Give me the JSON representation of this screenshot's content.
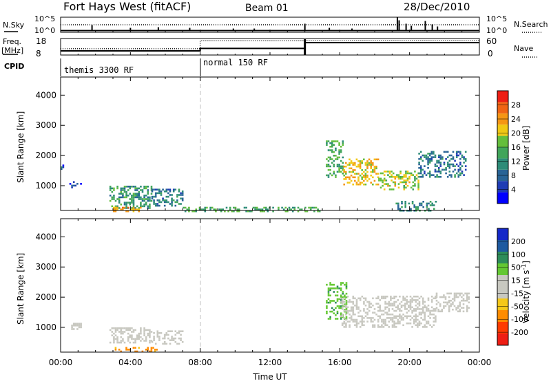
{
  "header": {
    "title": "Fort Hays West (fitACF)",
    "beam": "Beam 01",
    "date": "28/Dec/2010"
  },
  "top_panels": {
    "nsky_label": "N.Sky",
    "nsky_tick_hi": "10^5",
    "nsky_tick_lo": "10^0",
    "nsearch_label": "N.Search",
    "nsearch_tick_hi": "10^5",
    "nsearch_tick_lo": "10^0",
    "freq_label_1": "Freq.",
    "freq_label_2": "[MHz]",
    "freq_tick_hi": "18",
    "freq_tick_lo": "8",
    "nave_label": "Nave",
    "nave_tick_hi": "60",
    "nave_tick_lo": "0",
    "cpid_label": "CPID",
    "cpid_1": "themis 3300 RF",
    "cpid_2": "normal 150 RF"
  },
  "colors": {
    "power": [
      "#0000ff",
      "#1e3cb4",
      "#286496",
      "#2d8c78",
      "#41a55a",
      "#64be3c",
      "#f0c814",
      "#f59614",
      "#f06414",
      "#ee1e14"
    ],
    "velocity": [
      "#ee1e14",
      "#ff3c00",
      "#ff8c00",
      "#f5c819",
      "#c8c8c0",
      "#c8c8c0",
      "#64c832",
      "#2d8c5a",
      "#1e5aa0",
      "#1428c8"
    ],
    "gray_scatter": "#c8c8c0"
  },
  "chart_data": [
    {
      "type": "heatmap",
      "name": "power",
      "xlabel": "",
      "ylabel": "Slant Range [km]",
      "xlim": [
        0,
        24
      ],
      "ylim": [
        180,
        4600
      ],
      "yticks": [
        1000,
        2000,
        3000,
        4000
      ],
      "colorbar_label": "Power [dB]",
      "colorbar_ticks": [
        "4",
        "8",
        "12",
        "16",
        "20",
        "24",
        "28"
      ],
      "clim": [
        0,
        30
      ],
      "grid": false,
      "echo_regions": [
        {
          "t": [
            0.0,
            0.15
          ],
          "r": [
            1550,
            1700
          ],
          "value": 6
        },
        {
          "t": [
            0.5,
            1.2
          ],
          "r": [
            950,
            1150
          ],
          "value": 5
        },
        {
          "t": [
            2.8,
            5.2
          ],
          "r": [
            250,
            1000
          ],
          "value": 12
        },
        {
          "t": [
            5.2,
            7.0
          ],
          "r": [
            350,
            900
          ],
          "value": 9
        },
        {
          "t": [
            3.0,
            4.6
          ],
          "r": [
            180,
            300
          ],
          "value": 22
        },
        {
          "t": [
            7.0,
            15.0
          ],
          "r": [
            180,
            300
          ],
          "value": 14
        },
        {
          "t": [
            15.2,
            16.2
          ],
          "r": [
            1300,
            2500
          ],
          "value": 14
        },
        {
          "t": [
            16.2,
            18.2
          ],
          "r": [
            1050,
            1900
          ],
          "value": 20
        },
        {
          "t": [
            18.2,
            20.5
          ],
          "r": [
            900,
            1500
          ],
          "value": 18
        },
        {
          "t": [
            20.5,
            23.2
          ],
          "r": [
            1300,
            2150
          ],
          "value": 9
        },
        {
          "t": [
            19.2,
            21.5
          ],
          "r": [
            180,
            500
          ],
          "value": 10
        }
      ]
    },
    {
      "type": "heatmap",
      "name": "velocity",
      "xlabel": "Time UT",
      "ylabel": "Slant Range [km]",
      "xlim": [
        0,
        24
      ],
      "ylim": [
        180,
        4600
      ],
      "xticks": [
        "00:00",
        "04:00",
        "08:00",
        "12:00",
        "16:00",
        "20:00",
        "00:00"
      ],
      "yticks": [
        1000,
        2000,
        3000,
        4000
      ],
      "colorbar_label": "Velocity [m s^-1]",
      "colorbar_ticks": [
        "200",
        "100",
        "50",
        "15",
        "-15",
        "-50",
        "-100",
        "-200"
      ],
      "clim": [
        -250,
        250
      ],
      "grid": false,
      "echo_regions": [
        {
          "t": [
            0.5,
            1.2
          ],
          "r": [
            950,
            1150
          ],
          "value": 0
        },
        {
          "t": [
            2.8,
            5.2
          ],
          "r": [
            500,
            1000
          ],
          "value": 0
        },
        {
          "t": [
            5.2,
            7.0
          ],
          "r": [
            450,
            900
          ],
          "value": 0
        },
        {
          "t": [
            3.0,
            5.5
          ],
          "r": [
            180,
            350
          ],
          "value": -60
        },
        {
          "t": [
            15.2,
            16.4
          ],
          "r": [
            1300,
            2500
          ],
          "value": 40
        },
        {
          "t": [
            16.0,
            21.5
          ],
          "r": [
            1000,
            2050
          ],
          "value": 0
        },
        {
          "t": [
            21.5,
            23.4
          ],
          "r": [
            1500,
            2150
          ],
          "value": 0
        }
      ]
    },
    {
      "type": "line",
      "name": "n_sky_n_search",
      "xlim": [
        0,
        24
      ],
      "note_series": [
        "N.Sky",
        "N.Search"
      ]
    },
    {
      "type": "line",
      "name": "frequency_nave",
      "xlim": [
        0,
        24
      ],
      "series": [
        {
          "name": "Freq.",
          "x": [
            0,
            8,
            14,
            24
          ],
          "values": [
            10.5,
            12.0,
            15.5,
            15.5
          ]
        },
        {
          "name": "Nave",
          "x": [
            0,
            8,
            24
          ],
          "values": [
            23,
            52,
            52
          ]
        }
      ]
    }
  ]
}
